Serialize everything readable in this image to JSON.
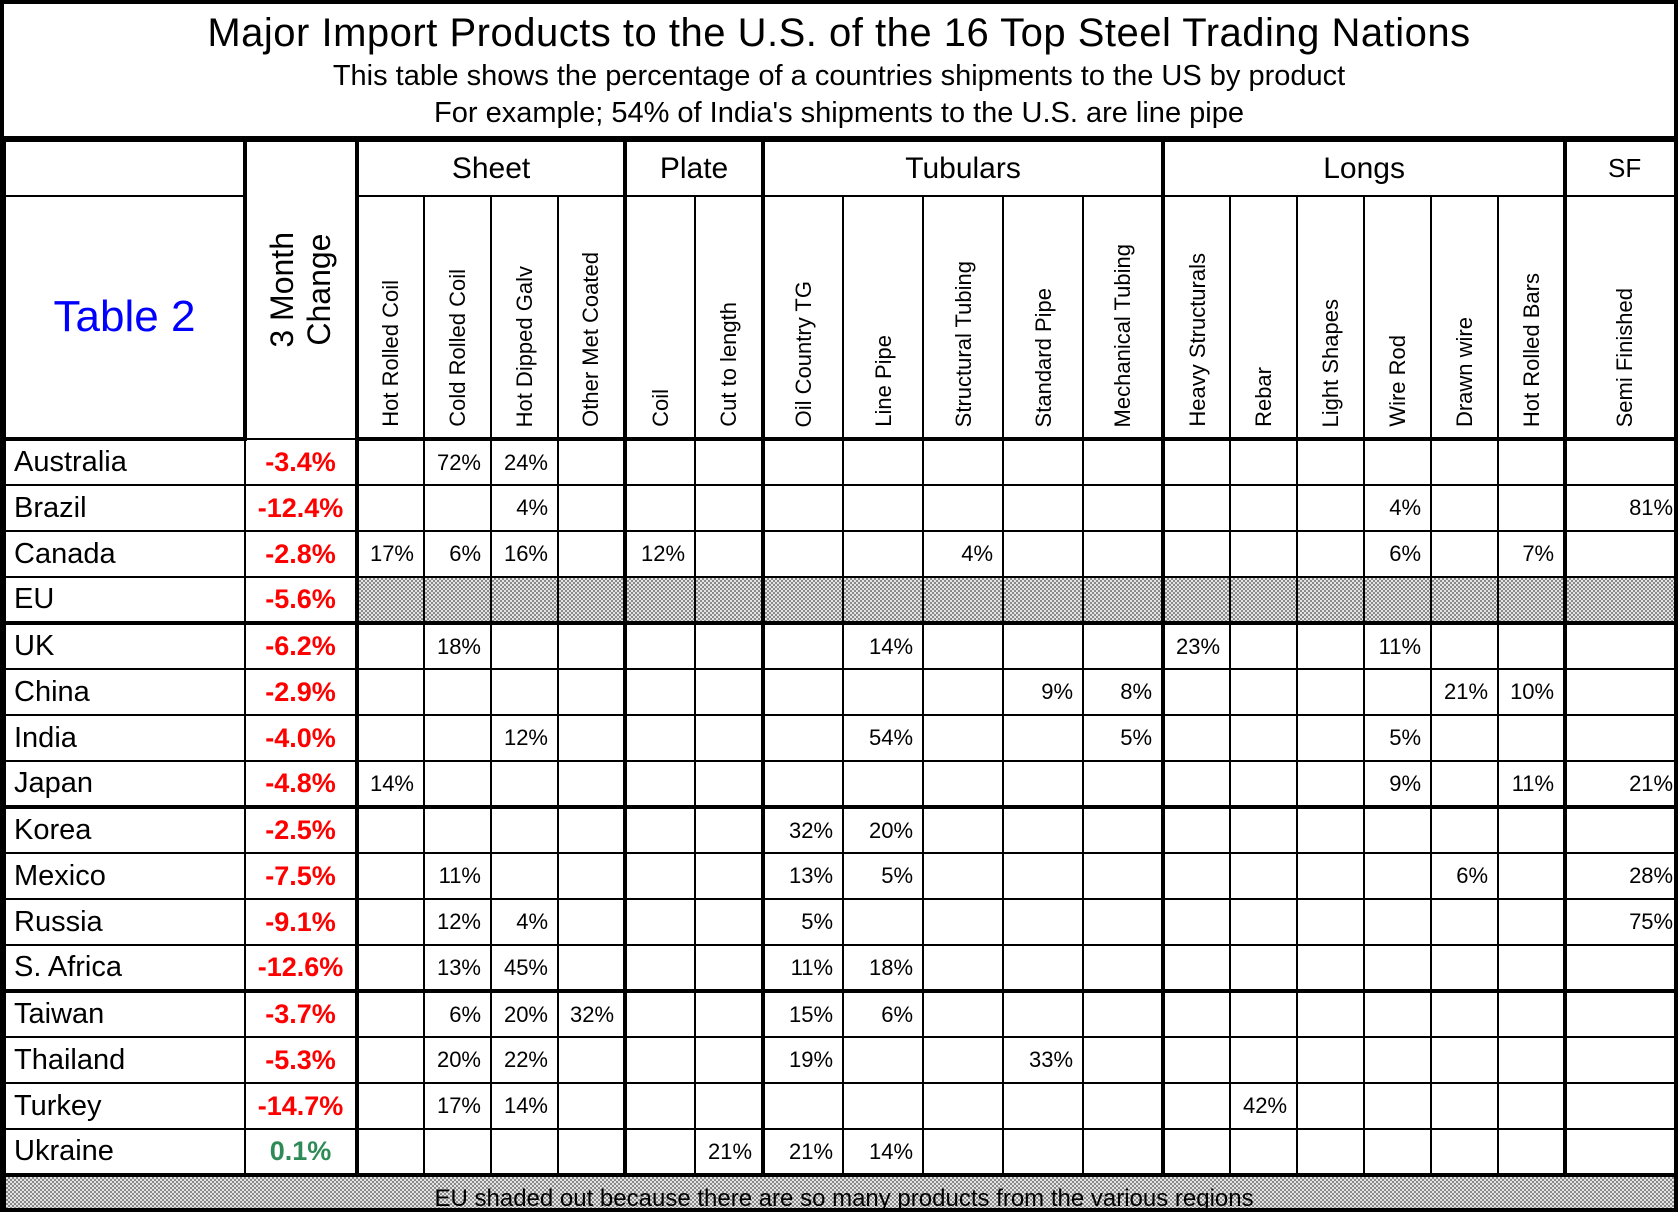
{
  "header": {
    "title": "Major Import Products to the U.S. of the 16 Top Steel Trading Nations",
    "subtitle1": "This table shows the percentage of a countries shipments to the US by product",
    "subtitle2": "For example; 54% of India's shipments to the U.S. are line pipe"
  },
  "table": {
    "corner_label": "Table 2",
    "change_header": "3 Month\nChange",
    "groups": [
      {
        "label": "Sheet",
        "span": 4
      },
      {
        "label": "Plate",
        "span": 2
      },
      {
        "label": "Tubulars",
        "span": 5
      },
      {
        "label": "Longs",
        "span": 6
      },
      {
        "label": "SF",
        "span": 1
      }
    ],
    "columns": [
      "Hot Rolled Coil",
      "Cold Rolled Coil",
      "Hot Dipped Galv",
      "Other Met Coated",
      "Coil",
      "Cut to length",
      "Oil Country TG",
      "Line Pipe",
      "Structural Tubing",
      "Standard Pipe",
      "Mechanical Tubing",
      "Heavy Structurals",
      "Rebar",
      "Light Shapes",
      "Wire Rod",
      "Drawn wire",
      "Hot Rolled Bars",
      "Semi Finished"
    ],
    "rows": [
      {
        "country": "Australia",
        "change": "-3.4%",
        "shaded": false,
        "values": [
          "",
          "72%",
          "24%",
          "",
          "",
          "",
          "",
          "",
          "",
          "",
          "",
          "",
          "",
          "",
          "",
          "",
          "",
          ""
        ]
      },
      {
        "country": "Brazil",
        "change": "-12.4%",
        "shaded": false,
        "values": [
          "",
          "",
          "4%",
          "",
          "",
          "",
          "",
          "",
          "",
          "",
          "",
          "",
          "",
          "",
          "4%",
          "",
          "",
          "81%"
        ]
      },
      {
        "country": "Canada",
        "change": "-2.8%",
        "shaded": false,
        "values": [
          "17%",
          "6%",
          "16%",
          "",
          "12%",
          "",
          "",
          "",
          "4%",
          "",
          "",
          "",
          "",
          "",
          "6%",
          "",
          "7%",
          ""
        ]
      },
      {
        "country": "EU",
        "change": "-5.6%",
        "shaded": true,
        "values": [
          "",
          "",
          "",
          "",
          "",
          "",
          "",
          "",
          "",
          "",
          "",
          "",
          "",
          "",
          "",
          "",
          "",
          ""
        ]
      },
      {
        "country": "UK",
        "change": "-6.2%",
        "shaded": false,
        "values": [
          "",
          "18%",
          "",
          "",
          "",
          "",
          "",
          "14%",
          "",
          "",
          "",
          "23%",
          "",
          "",
          "11%",
          "",
          "",
          ""
        ]
      },
      {
        "country": "China",
        "change": "-2.9%",
        "shaded": false,
        "values": [
          "",
          "",
          "",
          "",
          "",
          "",
          "",
          "",
          "",
          "9%",
          "8%",
          "",
          "",
          "",
          "",
          "21%",
          "10%",
          ""
        ]
      },
      {
        "country": "India",
        "change": "-4.0%",
        "shaded": false,
        "values": [
          "",
          "",
          "12%",
          "",
          "",
          "",
          "",
          "54%",
          "",
          "",
          "5%",
          "",
          "",
          "",
          "5%",
          "",
          "",
          ""
        ]
      },
      {
        "country": "Japan",
        "change": "-4.8%",
        "shaded": false,
        "values": [
          "14%",
          "",
          "",
          "",
          "",
          "",
          "",
          "",
          "",
          "",
          "",
          "",
          "",
          "",
          "9%",
          "",
          "11%",
          "21%"
        ]
      },
      {
        "country": "Korea",
        "change": "-2.5%",
        "shaded": false,
        "values": [
          "",
          "",
          "",
          "",
          "",
          "",
          "32%",
          "20%",
          "",
          "",
          "",
          "",
          "",
          "",
          "",
          "",
          "",
          ""
        ]
      },
      {
        "country": "Mexico",
        "change": "-7.5%",
        "shaded": false,
        "values": [
          "",
          "11%",
          "",
          "",
          "",
          "",
          "13%",
          "5%",
          "",
          "",
          "",
          "",
          "",
          "",
          "",
          "6%",
          "",
          "28%"
        ]
      },
      {
        "country": "Russia",
        "change": "-9.1%",
        "shaded": false,
        "values": [
          "",
          "12%",
          "4%",
          "",
          "",
          "",
          "5%",
          "",
          "",
          "",
          "",
          "",
          "",
          "",
          "",
          "",
          "",
          "75%"
        ]
      },
      {
        "country": "S. Africa",
        "change": "-12.6%",
        "shaded": false,
        "values": [
          "",
          "13%",
          "45%",
          "",
          "",
          "",
          "11%",
          "18%",
          "",
          "",
          "",
          "",
          "",
          "",
          "",
          "",
          "",
          ""
        ]
      },
      {
        "country": "Taiwan",
        "change": "-3.7%",
        "shaded": false,
        "values": [
          "",
          "6%",
          "20%",
          "32%",
          "",
          "",
          "15%",
          "6%",
          "",
          "",
          "",
          "",
          "",
          "",
          "",
          "",
          "",
          ""
        ]
      },
      {
        "country": "Thailand",
        "change": "-5.3%",
        "shaded": false,
        "values": [
          "",
          "20%",
          "22%",
          "",
          "",
          "",
          "19%",
          "",
          "",
          "33%",
          "",
          "",
          "",
          "",
          "",
          "",
          "",
          ""
        ]
      },
      {
        "country": "Turkey",
        "change": "-14.7%",
        "shaded": false,
        "values": [
          "",
          "17%",
          "14%",
          "",
          "",
          "",
          "",
          "",
          "",
          "",
          "",
          "",
          "42%",
          "",
          "",
          "",
          "",
          ""
        ]
      },
      {
        "country": "Ukraine",
        "change": "0.1%",
        "shaded": false,
        "values": [
          "",
          "",
          "",
          "",
          "",
          "21%",
          "21%",
          "14%",
          "",
          "",
          "",
          "",
          "",
          "",
          "",
          "",
          "",
          ""
        ]
      }
    ],
    "footnote": "EU shaded out because there are so many products from the various regions"
  },
  "colors": {
    "negative_change": "#ff0000",
    "positive_change": "#2e8b57",
    "table_label": "#0000ff",
    "border": "#000000",
    "shade_dark": "#8a8a8a",
    "shade_light": "#e4e4e4"
  }
}
